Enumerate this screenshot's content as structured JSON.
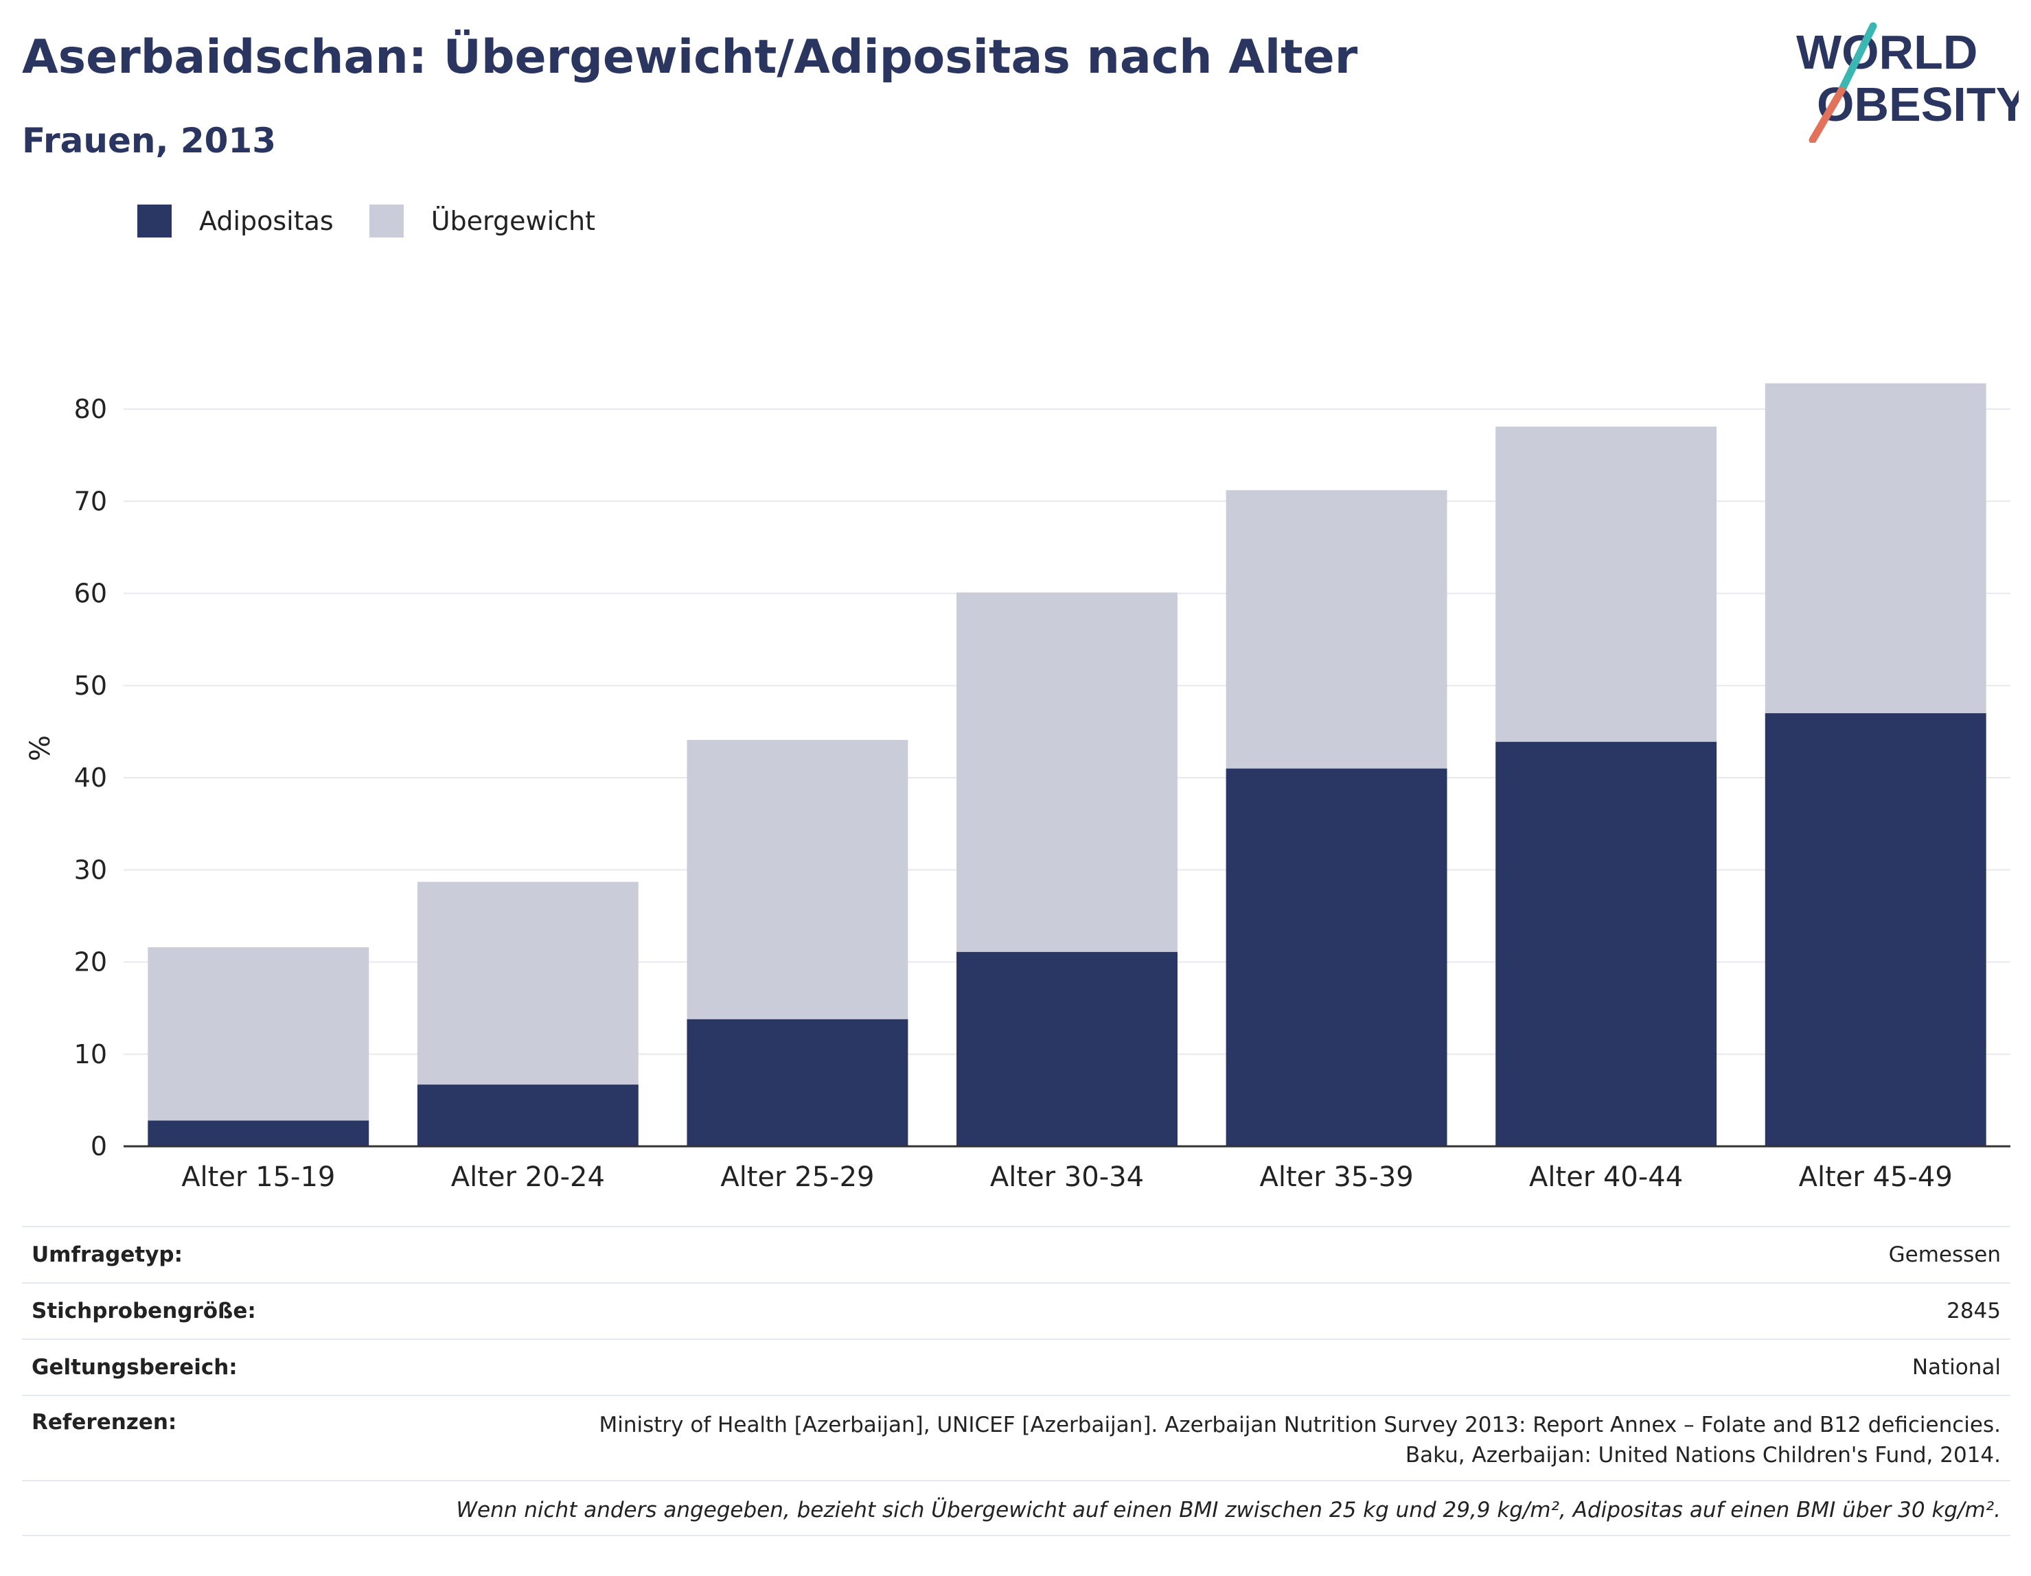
{
  "header": {
    "title": "Aserbaidschan: Übergewicht/Adipositas nach Alter",
    "subtitle": "Frauen, 2013"
  },
  "logo": {
    "line1": "WORLD",
    "line2": "OBESITY"
  },
  "colors": {
    "obesity": "#2a3663",
    "overweight": "#cacdd9",
    "title": "#2a3560"
  },
  "chart_data": {
    "type": "bar",
    "stacked": true,
    "categories": [
      "Alter 15-19",
      "Alter 20-24",
      "Alter 25-29",
      "Alter 30-34",
      "Alter 35-39",
      "Alter 40-44",
      "Alter 45-49"
    ],
    "series": [
      {
        "name": "Adipositas",
        "color": "#2a3663",
        "values": [
          2.8,
          6.7,
          13.8,
          21.1,
          41.0,
          43.9,
          47.0
        ]
      },
      {
        "name": "Übergewicht",
        "color": "#cacdd9",
        "values": [
          18.8,
          22.0,
          30.3,
          39.0,
          30.2,
          34.2,
          35.8
        ]
      }
    ],
    "ylabel": "%",
    "yticks": [
      0,
      10,
      20,
      30,
      40,
      50,
      60,
      70,
      80
    ],
    "ylim": [
      0,
      85
    ],
    "grid": true,
    "legend": "top-left"
  },
  "info": {
    "rows": [
      {
        "label": "Umfragetyp:",
        "value": "Gemessen"
      },
      {
        "label": "Stichprobengröße:",
        "value": "2845"
      },
      {
        "label": "Geltungsbereich:",
        "value": "National"
      }
    ],
    "references_label": "Referenzen:",
    "references_line1": "Ministry of Health [Azerbaijan], UNICEF [Azerbaijan]. Azerbaijan Nutrition Survey 2013: Report Annex – Folate and B12 deficiencies.",
    "references_line2": "Baku, Azerbaijan: United Nations Children's Fund, 2014.",
    "note": "Wenn nicht anders angegeben, bezieht sich Übergewicht auf einen BMI zwischen 25 kg und 29,9 kg/m², Adipositas auf einen BMI über 30 kg/m²."
  }
}
